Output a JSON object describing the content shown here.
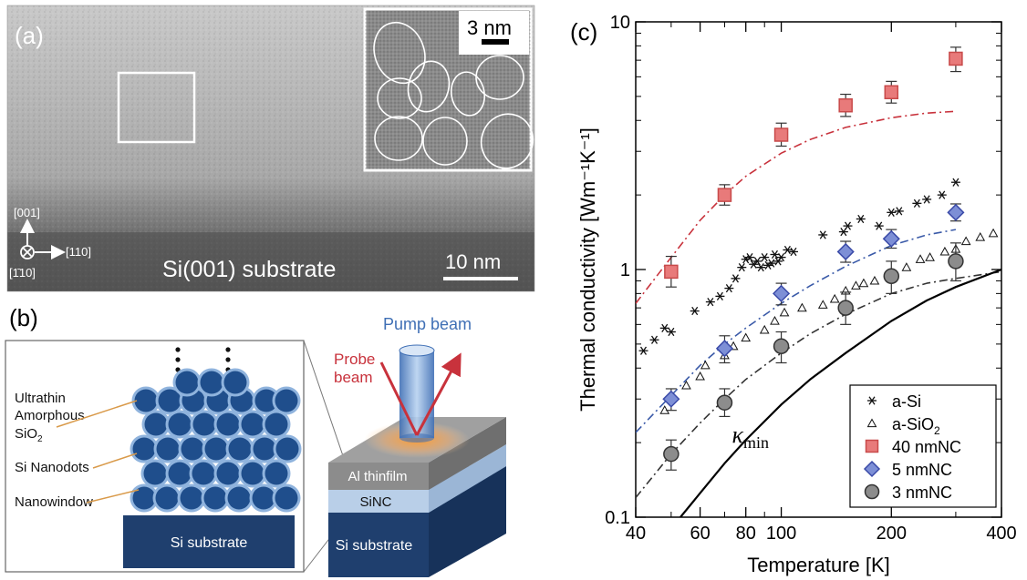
{
  "panel_a": {
    "label": "(a)",
    "substrate_label": "Si(001) substrate",
    "scale_main": "10 nm",
    "scale_inset": "3 nm",
    "axis_001": "[001]",
    "axis_110": "[110]",
    "axis_1bar10": "[1̄10]"
  },
  "panel_b": {
    "label": "(b)",
    "ultrathin": "Ultrathin",
    "amorphous": "Amorphous",
    "sio2": "SiO",
    "sio2_sub": "2",
    "si_nanodots": "Si Nanodots",
    "nanowindow": "Nanowindow",
    "si_substrate_left": "Si substrate",
    "pump_beam": "Pump beam",
    "probe": "Probe",
    "beam": "beam",
    "al_thinfilm": "Al thinfilm",
    "sinc": "SiNC",
    "si_substrate_right": "Si substrate",
    "colors": {
      "dot": "#1f4e8c",
      "dot_shell": "#8fb3dd",
      "substrate": "#1f3f6e",
      "probe": "#c8323c",
      "pump": "#4a78b8"
    }
  },
  "panel_c": {
    "label": "(c)"
  },
  "chart_data": {
    "type": "scatter",
    "xscale": "log",
    "yscale": "log",
    "xlim": [
      40,
      400
    ],
    "ylim": [
      0.1,
      10
    ],
    "xlabel": "Temperature [K]",
    "ylabel": "Thermal conductivity [Wm⁻¹K⁻¹]",
    "xticks": [
      {
        "value": 40,
        "label": "40"
      },
      {
        "value": 60,
        "label": "60"
      },
      {
        "value": 80,
        "label": "80"
      },
      {
        "value": 100,
        "label": "100"
      },
      {
        "value": 200,
        "label": "200"
      },
      {
        "value": 400,
        "label": "400"
      }
    ],
    "yticks": [
      {
        "value": 0.1,
        "label": "0.1"
      },
      {
        "value": 1,
        "label": "1"
      },
      {
        "value": 10,
        "label": "10"
      }
    ],
    "kmin_label": "κ",
    "kmin_sub": "min",
    "legend_position": "bottom-right",
    "series": [
      {
        "name": "a-Si",
        "marker": "star",
        "color": "#222222",
        "x": [
          42,
          45,
          48,
          50,
          58,
          64,
          68,
          72,
          75,
          78,
          80,
          82,
          84,
          86,
          88,
          90,
          92,
          94,
          96,
          98,
          100,
          104,
          108,
          130,
          148,
          152,
          165,
          185,
          200,
          210,
          235,
          250,
          275,
          300
        ],
        "y": [
          0.47,
          0.52,
          0.58,
          0.56,
          0.68,
          0.74,
          0.78,
          0.84,
          0.92,
          1.02,
          1.1,
          1.12,
          1.05,
          1.08,
          1.02,
          1.12,
          1.04,
          1.06,
          1.15,
          1.08,
          1.12,
          1.2,
          1.18,
          1.38,
          1.42,
          1.5,
          1.6,
          1.5,
          1.7,
          1.72,
          1.85,
          1.92,
          2.0,
          2.25
        ]
      },
      {
        "name": "a-SiO",
        "name_sub": "2",
        "marker": "triangle",
        "color": "#222222",
        "x": [
          48,
          50,
          55,
          60,
          62,
          70,
          74,
          80,
          90,
          96,
          102,
          114,
          130,
          140,
          150,
          160,
          168,
          180,
          200,
          220,
          240,
          255,
          280,
          300,
          320,
          350,
          380
        ],
        "y": [
          0.27,
          0.3,
          0.34,
          0.37,
          0.41,
          0.45,
          0.49,
          0.53,
          0.57,
          0.62,
          0.67,
          0.7,
          0.72,
          0.76,
          0.82,
          0.86,
          0.88,
          0.9,
          0.96,
          1.02,
          1.1,
          1.12,
          1.18,
          1.21,
          1.3,
          1.35,
          1.4
        ]
      },
      {
        "name": "40 nmNC",
        "marker": "square",
        "color": "#e87a7a",
        "x": [
          50,
          70,
          100,
          150,
          200,
          300
        ],
        "y": [
          0.98,
          2.0,
          3.5,
          4.6,
          5.2,
          7.1
        ],
        "err": [
          [
            0.85,
            1.13
          ],
          [
            1.82,
            2.2
          ],
          [
            3.15,
            3.9
          ],
          [
            4.15,
            5.1
          ],
          [
            4.7,
            5.75
          ],
          [
            6.3,
            7.9
          ]
        ]
      },
      {
        "name": "5 nmNC",
        "marker": "diamond",
        "color": "#7d8fd6",
        "x": [
          50,
          70,
          100,
          150,
          200,
          300
        ],
        "y": [
          0.3,
          0.48,
          0.8,
          1.18,
          1.33,
          1.7
        ],
        "err": [
          [
            0.27,
            0.33
          ],
          [
            0.42,
            0.54
          ],
          [
            0.72,
            0.88
          ],
          [
            1.07,
            1.3
          ],
          [
            1.22,
            1.45
          ],
          [
            1.57,
            1.84
          ]
        ]
      },
      {
        "name": "3 nmNC",
        "marker": "circle",
        "color": "#8c8c8c",
        "x": [
          50,
          70,
          100,
          150,
          200,
          300
        ],
        "y": [
          0.18,
          0.29,
          0.49,
          0.7,
          0.94,
          1.08
        ],
        "err": [
          [
            0.155,
            0.205
          ],
          [
            0.255,
            0.33
          ],
          [
            0.42,
            0.56
          ],
          [
            0.6,
            0.81
          ],
          [
            0.8,
            1.08
          ],
          [
            0.9,
            1.28
          ]
        ]
      }
    ],
    "fit_curves": [
      {
        "series": "40 nmNC fit",
        "style": "dashdot",
        "color": "#c8323c",
        "x": [
          40,
          50,
          60,
          70,
          80,
          100,
          120,
          150,
          200,
          250,
          300
        ],
        "y": [
          0.73,
          1.12,
          1.58,
          2.0,
          2.38,
          2.95,
          3.35,
          3.75,
          4.1,
          4.28,
          4.35
        ]
      },
      {
        "series": "5 nmNC fit",
        "style": "dashdot",
        "color": "#3a5aa8",
        "x": [
          40,
          50,
          60,
          70,
          80,
          100,
          120,
          150,
          200,
          250,
          300
        ],
        "y": [
          0.22,
          0.31,
          0.41,
          0.5,
          0.58,
          0.73,
          0.86,
          1.03,
          1.25,
          1.38,
          1.45
        ]
      },
      {
        "series": "3 nmNC fit",
        "style": "dashdot",
        "color": "#333333",
        "x": [
          40,
          50,
          60,
          70,
          80,
          100,
          120,
          150,
          200,
          250,
          300,
          400
        ],
        "y": [
          0.12,
          0.18,
          0.24,
          0.3,
          0.36,
          0.46,
          0.55,
          0.66,
          0.8,
          0.88,
          0.92,
          0.98
        ]
      },
      {
        "series": "kmin",
        "style": "solid",
        "color": "#000000",
        "x": [
          53,
          60,
          70,
          80,
          100,
          120,
          150,
          200,
          250,
          300,
          400
        ],
        "y": [
          0.1,
          0.125,
          0.165,
          0.205,
          0.285,
          0.36,
          0.46,
          0.62,
          0.75,
          0.85,
          1.0
        ]
      }
    ]
  }
}
